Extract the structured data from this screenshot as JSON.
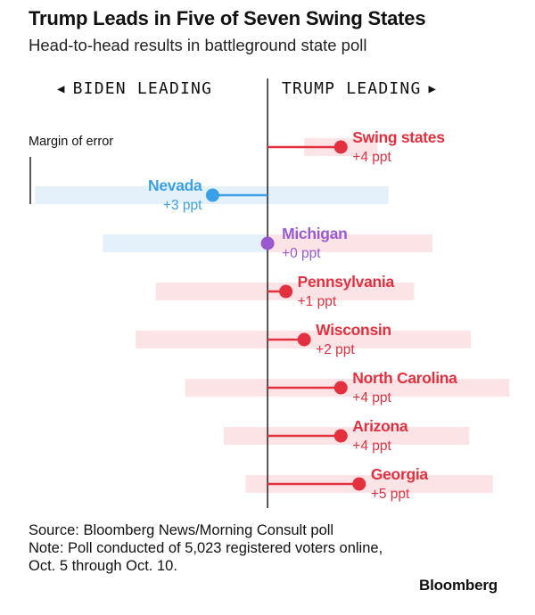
{
  "header": {
    "title": "Trump Leads in Five of Seven Swing States",
    "subtitle": "Head-to-head results in battleground state poll"
  },
  "direction": {
    "left_label": "BIDEN LEADING",
    "left_arrow": "◀",
    "right_label": "TRUMP LEADING",
    "right_arrow": "▶"
  },
  "colors": {
    "trump": "#e3303f",
    "biden": "#3aa0e6",
    "tie": "#9b59d0",
    "trump_band": "#fbe3e6",
    "biden_band": "#e4f1fb",
    "axis": "#111111"
  },
  "chart_data": {
    "type": "dot-bar",
    "annotation": "Margin of error",
    "axis_range": [
      -13,
      14.5
    ],
    "unit": "ppt",
    "series": [
      {
        "name": "Swing states",
        "value": 4,
        "leader": "Trump",
        "label_value": "+4 ppt",
        "moe_low": 2,
        "moe_high": 6
      },
      {
        "name": "Nevada",
        "value": -3,
        "leader": "Biden",
        "label_value": "+3 ppt",
        "moe_low": -12.7,
        "moe_high": 6.6
      },
      {
        "name": "Michigan",
        "value": 0,
        "leader": "Tie",
        "label_value": "+0 ppt",
        "moe_low": -9,
        "moe_high": 9
      },
      {
        "name": "Pennsylvania",
        "value": 1,
        "leader": "Trump",
        "label_value": "+1 ppt",
        "moe_low": -6.1,
        "moe_high": 8
      },
      {
        "name": "Wisconsin",
        "value": 2,
        "leader": "Trump",
        "label_value": "+2 ppt",
        "moe_low": -7.2,
        "moe_high": 11.1
      },
      {
        "name": "North Carolina",
        "value": 4,
        "leader": "Trump",
        "label_value": "+4 ppt",
        "moe_low": -4.5,
        "moe_high": 13.2
      },
      {
        "name": "Arizona",
        "value": 4,
        "leader": "Trump",
        "label_value": "+4 ppt",
        "moe_low": -2.4,
        "moe_high": 11
      },
      {
        "name": "Georgia",
        "value": 5,
        "leader": "Trump",
        "label_value": "+5 ppt",
        "moe_low": -1.2,
        "moe_high": 12.3
      }
    ]
  },
  "footer": {
    "source": "Source: Bloomberg News/Morning Consult poll",
    "note": "Note: Poll conducted of 5,023 registered voters online, Oct. 5 through Oct. 10.",
    "brand": "Bloomberg"
  }
}
